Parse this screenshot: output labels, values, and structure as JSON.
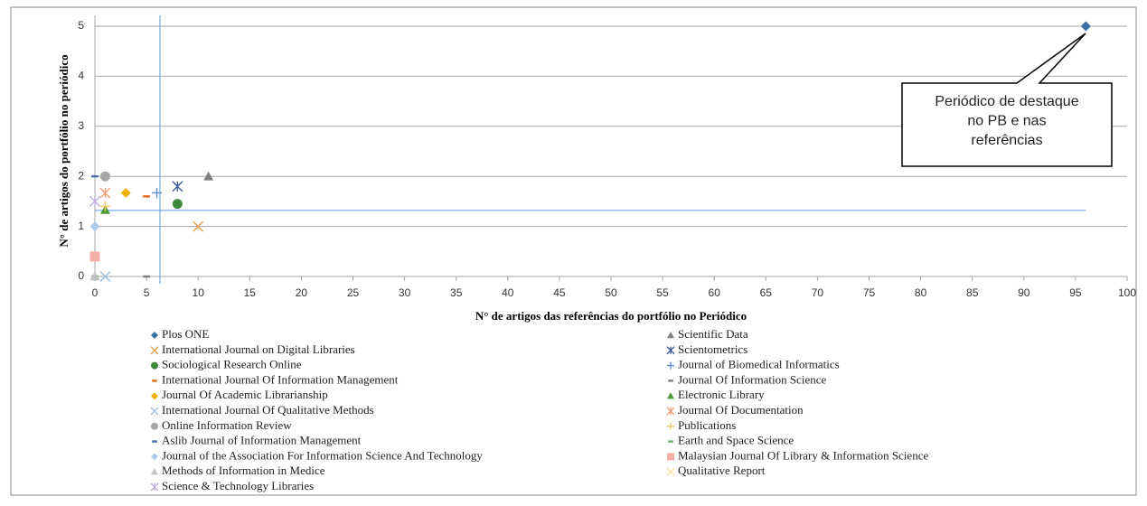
{
  "chart_data": {
    "type": "scatter",
    "x_label": "N° de artigos das referências do portfólio no Periódico",
    "y_label": "N° de artigos do portfólio no periódico",
    "xlim": [
      0,
      100
    ],
    "ylim": [
      0,
      5
    ],
    "xticks": [
      0,
      5,
      10,
      15,
      20,
      25,
      30,
      35,
      40,
      45,
      50,
      55,
      60,
      65,
      70,
      75,
      80,
      85,
      90,
      95,
      100
    ],
    "yticks": [
      0,
      1,
      2,
      3,
      4,
      5
    ],
    "grid": true,
    "reference_lines": {
      "x": 6.3,
      "y": 1.32,
      "color": "#5b9bd5"
    },
    "annotation": {
      "lines": [
        "Periódico de destaque",
        "no PB e nas",
        "referências"
      ]
    },
    "series": [
      {
        "name": "Plos ONE",
        "color": "#3a6ea5",
        "marker": "diamond",
        "x": [
          96
        ],
        "values": [
          5
        ]
      },
      {
        "name": "Scientific Data",
        "color": "#7f7f7f",
        "marker": "triangle",
        "x": [
          11
        ],
        "values": [
          2
        ]
      },
      {
        "name": "International Journal on Digital Libraries",
        "color": "#e0a050",
        "marker": "x",
        "x": [
          10
        ],
        "values": [
          1
        ]
      },
      {
        "name": "Scientometrics",
        "color": "#4060a0",
        "marker": "asterisk",
        "x": [
          8
        ],
        "values": [
          1.8
        ]
      },
      {
        "name": "Sociological Research Online",
        "color": "#3d8a3d",
        "marker": "circle",
        "x": [
          8
        ],
        "values": [
          1.45
        ]
      },
      {
        "name": "Journal of Biomedical Informatics",
        "color": "#6090d0",
        "marker": "plus",
        "x": [
          6
        ],
        "values": [
          1.67
        ]
      },
      {
        "name": "International Journal Of Information Management",
        "color": "#e07020",
        "marker": "dash",
        "x": [
          5
        ],
        "values": [
          1.6
        ]
      },
      {
        "name": "Journal Of Information Science",
        "color": "#808080",
        "marker": "dash",
        "x": [
          5
        ],
        "values": [
          0
        ]
      },
      {
        "name": "Journal Of Academic Librarianship",
        "color": "#f0b000",
        "marker": "diamond",
        "x": [
          3
        ],
        "values": [
          1.67
        ]
      },
      {
        "name": "Electronic Library",
        "color": "#4a9a3a",
        "marker": "triangle",
        "x": [
          1
        ],
        "values": [
          1.33
        ]
      },
      {
        "name": "International Journal Of Qualitative Methods",
        "color": "#a0c0e0",
        "marker": "x",
        "x": [
          1
        ],
        "values": [
          0
        ]
      },
      {
        "name": "Journal Of Documentation",
        "color": "#f0a080",
        "marker": "asterisk",
        "x": [
          1
        ],
        "values": [
          1.67
        ]
      },
      {
        "name": "Online Information Review",
        "color": "#a6a6a6",
        "marker": "circle",
        "x": [
          1
        ],
        "values": [
          2
        ]
      },
      {
        "name": "Publications",
        "color": "#f8c860",
        "marker": "plus",
        "x": [
          1
        ],
        "values": [
          1.4
        ]
      },
      {
        "name": "Aslib Journal of Information Management",
        "color": "#5070b0",
        "marker": "dash",
        "x": [
          0
        ],
        "values": [
          2
        ]
      },
      {
        "name": "Earth and Space Science",
        "color": "#70b070",
        "marker": "dash",
        "x": [
          0
        ],
        "values": [
          0
        ]
      },
      {
        "name": "Journal of the Association For Information Science And Technology",
        "color": "#b0cce8",
        "marker": "diamond",
        "x": [
          0
        ],
        "values": [
          1
        ]
      },
      {
        "name": "Malaysian Journal Of Library & Information Science",
        "color": "#f4b0a8",
        "marker": "square",
        "x": [
          0
        ],
        "values": [
          0.4
        ]
      },
      {
        "name": "Methods of Information in Medice",
        "color": "#c0c0c0",
        "marker": "triangle",
        "x": [
          0
        ],
        "values": [
          0
        ]
      },
      {
        "name": "Qualitative Report",
        "color": "#f8e0a0",
        "marker": "x",
        "x": [
          0
        ],
        "values": [
          1.5
        ]
      },
      {
        "name": "Science & Technology Libraries",
        "color": "#c0b0e0",
        "marker": "asterisk",
        "x": [
          0
        ],
        "values": [
          1.5
        ]
      }
    ]
  }
}
